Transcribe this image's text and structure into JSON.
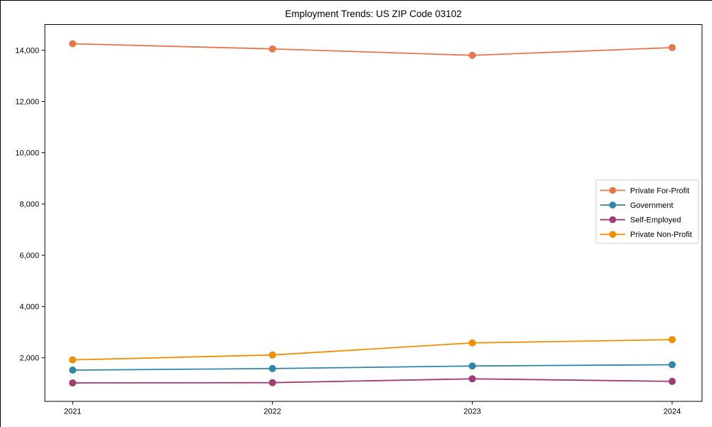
{
  "figure": {
    "background": "#ffffff"
  },
  "chart_data": {
    "type": "line",
    "title": "Employment Trends: US ZIP Code 03102",
    "categories": [
      "2021",
      "2022",
      "2023",
      "2024"
    ],
    "series": [
      {
        "name": "Private For-Profit",
        "color": "#E8764B",
        "values": [
          14250,
          14050,
          13800,
          14100
        ]
      },
      {
        "name": "Government",
        "color": "#2E86AB",
        "values": [
          1520,
          1580,
          1680,
          1730
        ]
      },
      {
        "name": "Self-Employed",
        "color": "#A23B72",
        "values": [
          1020,
          1030,
          1180,
          1080
        ]
      },
      {
        "name": "Private Non-Profit",
        "color": "#F18F01",
        "values": [
          1920,
          2110,
          2580,
          2710
        ]
      }
    ],
    "xlabel": "",
    "ylabel": "",
    "ylim": [
      300,
      15000
    ],
    "yticks": [
      2000,
      4000,
      6000,
      8000,
      10000,
      12000,
      14000
    ],
    "ytick_labels": [
      "2,000",
      "4,000",
      "6,000",
      "8,000",
      "10,000",
      "12,000",
      "14,000"
    ],
    "grid": false,
    "legend_position": "right-middle",
    "marker": "circle",
    "axis_color": "#000000",
    "legend_border_color": "#cccccc",
    "legend_background": "#ffffff"
  }
}
